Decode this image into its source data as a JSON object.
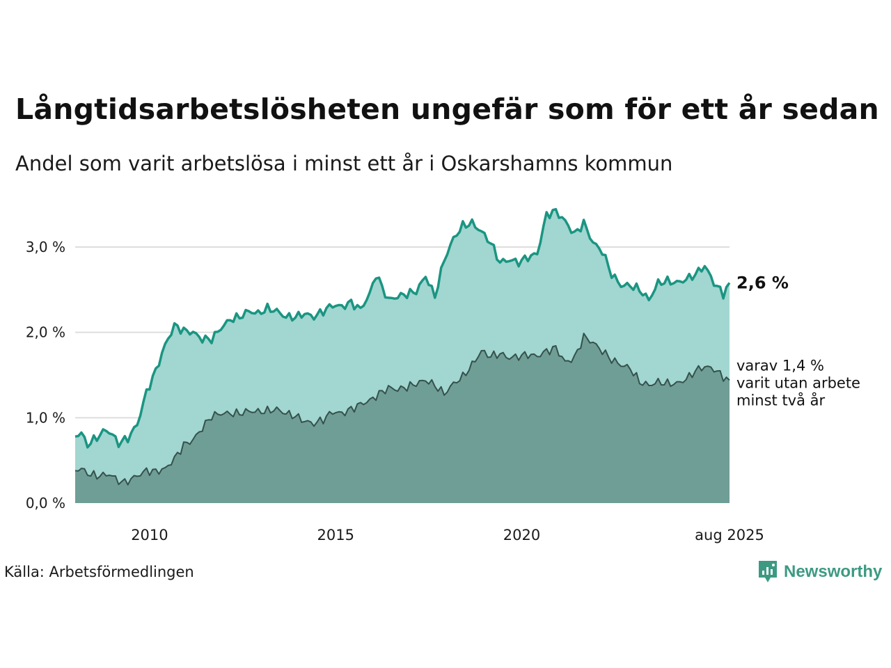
{
  "header": {
    "title": "Långtidsarbetslösheten ungefär som för ett år sedan",
    "subtitle": "Andel som varit arbetslösa i minst ett år i Oskarshamns kommun"
  },
  "footer": {
    "source": "Källa: Arbetsförmedlingen",
    "brand": "Newsworthy"
  },
  "colors": {
    "series1_line": "#1a9582",
    "series1_fill": "#a2d6d0",
    "series2_line": "#34514c",
    "series2_fill": "#6f9e96",
    "grid": "#dddddd",
    "brand": "#3c9a83"
  },
  "chart_data": {
    "type": "area",
    "x_start": "2008-01",
    "x_end": "2025-08",
    "frequency": "monthly",
    "ylim": [
      0,
      3.0
    ],
    "yticks": [
      0,
      1,
      2,
      3
    ],
    "ytick_labels": [
      "0,0 %",
      "1,0 %",
      "2,0 %",
      "3,0 %"
    ],
    "xticks": [
      "2010-01",
      "2015-01",
      "2020-01",
      "2025-08"
    ],
    "xtick_labels": [
      "2010",
      "2015",
      "2020",
      "aug 2025"
    ],
    "grid": true,
    "end_label": "2,6 %",
    "annotation": [
      "varav 1,4 %",
      "varit utan arbete",
      "minst två år"
    ],
    "series": [
      {
        "anchors": [
          [
            "2008-01",
            0.78
          ],
          [
            "2008-03",
            0.82
          ],
          [
            "2008-05",
            0.68
          ],
          [
            "2008-09",
            0.8
          ],
          [
            "2008-11",
            0.86
          ],
          [
            "2009-01",
            0.8
          ],
          [
            "2009-03",
            0.7
          ],
          [
            "2009-06",
            0.76
          ],
          [
            "2009-09",
            0.92
          ],
          [
            "2009-12",
            1.3
          ],
          [
            "2010-03",
            1.55
          ],
          [
            "2010-06",
            1.85
          ],
          [
            "2010-09",
            2.08
          ],
          [
            "2010-12",
            2.02
          ],
          [
            "2011-03",
            2.0
          ],
          [
            "2011-06",
            1.92
          ],
          [
            "2011-09",
            1.92
          ],
          [
            "2011-12",
            2.05
          ],
          [
            "2012-03",
            2.15
          ],
          [
            "2012-06",
            2.18
          ],
          [
            "2012-09",
            2.25
          ],
          [
            "2012-12",
            2.22
          ],
          [
            "2013-03",
            2.28
          ],
          [
            "2013-06",
            2.25
          ],
          [
            "2013-09",
            2.18
          ],
          [
            "2013-12",
            2.18
          ],
          [
            "2014-03",
            2.22
          ],
          [
            "2014-06",
            2.18
          ],
          [
            "2014-09",
            2.25
          ],
          [
            "2014-12",
            2.32
          ],
          [
            "2015-03",
            2.3
          ],
          [
            "2015-06",
            2.35
          ],
          [
            "2015-09",
            2.27
          ],
          [
            "2015-12",
            2.45
          ],
          [
            "2016-02",
            2.68
          ],
          [
            "2016-06",
            2.38
          ],
          [
            "2016-09",
            2.42
          ],
          [
            "2016-12",
            2.45
          ],
          [
            "2017-03",
            2.48
          ],
          [
            "2017-06",
            2.66
          ],
          [
            "2017-09",
            2.42
          ],
          [
            "2017-12",
            2.85
          ],
          [
            "2018-03",
            3.1
          ],
          [
            "2018-06",
            3.25
          ],
          [
            "2018-09",
            3.28
          ],
          [
            "2018-12",
            3.18
          ],
          [
            "2019-03",
            3.05
          ],
          [
            "2019-06",
            2.82
          ],
          [
            "2019-09",
            2.85
          ],
          [
            "2019-12",
            2.82
          ],
          [
            "2020-03",
            2.88
          ],
          [
            "2020-06",
            2.92
          ],
          [
            "2020-09",
            3.38
          ],
          [
            "2020-12",
            3.42
          ],
          [
            "2021-03",
            3.3
          ],
          [
            "2021-06",
            3.15
          ],
          [
            "2021-09",
            3.28
          ],
          [
            "2021-12",
            3.05
          ],
          [
            "2022-03",
            2.95
          ],
          [
            "2022-06",
            2.68
          ],
          [
            "2022-09",
            2.55
          ],
          [
            "2022-12",
            2.55
          ],
          [
            "2023-03",
            2.5
          ],
          [
            "2023-06",
            2.38
          ],
          [
            "2023-09",
            2.58
          ],
          [
            "2023-12",
            2.6
          ],
          [
            "2024-03",
            2.58
          ],
          [
            "2024-06",
            2.62
          ],
          [
            "2024-09",
            2.68
          ],
          [
            "2024-12",
            2.78
          ],
          [
            "2025-03",
            2.58
          ],
          [
            "2025-06",
            2.45
          ],
          [
            "2025-08",
            2.58
          ]
        ]
      },
      {
        "anchors": [
          [
            "2008-01",
            0.38
          ],
          [
            "2008-03",
            0.4
          ],
          [
            "2008-06",
            0.33
          ],
          [
            "2008-09",
            0.32
          ],
          [
            "2008-12",
            0.34
          ],
          [
            "2009-03",
            0.26
          ],
          [
            "2009-05",
            0.24
          ],
          [
            "2009-08",
            0.3
          ],
          [
            "2009-12",
            0.38
          ],
          [
            "2010-03",
            0.37
          ],
          [
            "2010-06",
            0.4
          ],
          [
            "2010-09",
            0.52
          ],
          [
            "2010-12",
            0.68
          ],
          [
            "2011-03",
            0.74
          ],
          [
            "2011-06",
            0.88
          ],
          [
            "2011-09",
            1.02
          ],
          [
            "2011-12",
            1.05
          ],
          [
            "2012-03",
            1.05
          ],
          [
            "2012-06",
            1.05
          ],
          [
            "2012-09",
            1.08
          ],
          [
            "2012-12",
            1.07
          ],
          [
            "2013-03",
            1.08
          ],
          [
            "2013-06",
            1.1
          ],
          [
            "2013-09",
            1.05
          ],
          [
            "2013-12",
            1.02
          ],
          [
            "2014-03",
            0.96
          ],
          [
            "2014-06",
            0.93
          ],
          [
            "2014-09",
            0.98
          ],
          [
            "2014-12",
            1.07
          ],
          [
            "2015-03",
            1.05
          ],
          [
            "2015-06",
            1.1
          ],
          [
            "2015-09",
            1.16
          ],
          [
            "2015-12",
            1.2
          ],
          [
            "2016-03",
            1.28
          ],
          [
            "2016-06",
            1.35
          ],
          [
            "2016-09",
            1.33
          ],
          [
            "2016-12",
            1.36
          ],
          [
            "2017-03",
            1.4
          ],
          [
            "2017-06",
            1.44
          ],
          [
            "2017-09",
            1.38
          ],
          [
            "2017-12",
            1.28
          ],
          [
            "2018-03",
            1.4
          ],
          [
            "2018-06",
            1.48
          ],
          [
            "2018-09",
            1.62
          ],
          [
            "2018-12",
            1.78
          ],
          [
            "2019-03",
            1.72
          ],
          [
            "2019-06",
            1.75
          ],
          [
            "2019-09",
            1.7
          ],
          [
            "2019-12",
            1.72
          ],
          [
            "2020-03",
            1.74
          ],
          [
            "2020-06",
            1.72
          ],
          [
            "2020-09",
            1.78
          ],
          [
            "2020-12",
            1.82
          ],
          [
            "2021-03",
            1.65
          ],
          [
            "2021-06",
            1.7
          ],
          [
            "2021-09",
            1.95
          ],
          [
            "2021-12",
            1.88
          ],
          [
            "2022-03",
            1.78
          ],
          [
            "2022-06",
            1.68
          ],
          [
            "2022-09",
            1.62
          ],
          [
            "2022-12",
            1.58
          ],
          [
            "2023-03",
            1.42
          ],
          [
            "2023-06",
            1.38
          ],
          [
            "2023-09",
            1.42
          ],
          [
            "2023-12",
            1.4
          ],
          [
            "2024-03",
            1.4
          ],
          [
            "2024-06",
            1.45
          ],
          [
            "2024-09",
            1.55
          ],
          [
            "2024-12",
            1.6
          ],
          [
            "2025-03",
            1.57
          ],
          [
            "2025-06",
            1.48
          ],
          [
            "2025-08",
            1.44
          ]
        ]
      }
    ]
  }
}
